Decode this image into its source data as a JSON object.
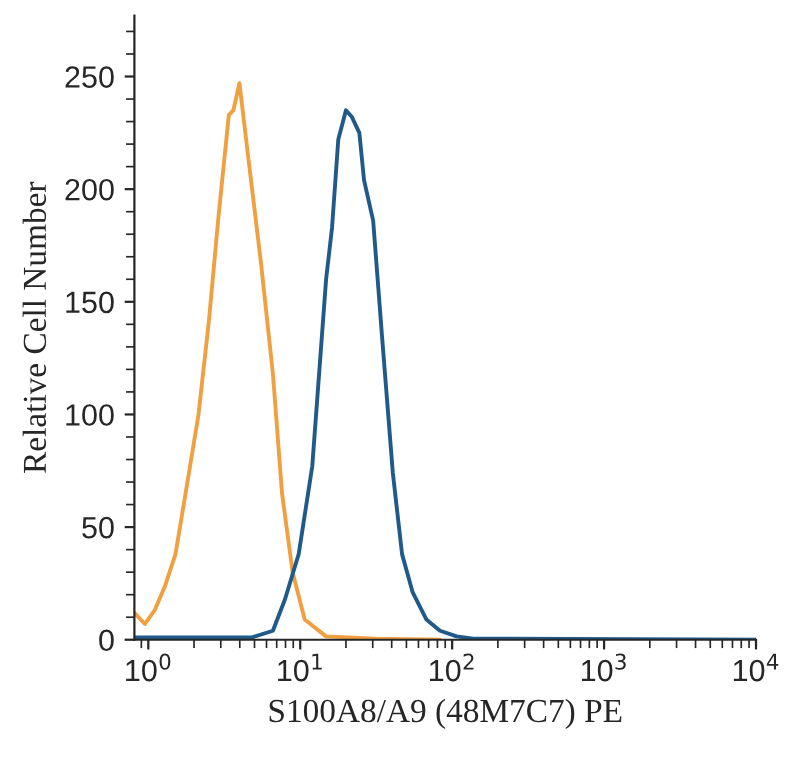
{
  "chart_data": {
    "type": "line",
    "xlabel": "S100A8/A9 (48M7C7) PE",
    "ylabel": "Relative Cell Number",
    "log": "x",
    "xlim": [
      0.81,
      10000
    ],
    "ylim": [
      0,
      277
    ],
    "xticks": [
      {
        "value": 1,
        "label": "10$^{0}$"
      },
      {
        "value": 10,
        "label": "10$^{1}$"
      },
      {
        "value": 100,
        "label": "10$^{2}$"
      },
      {
        "value": 1000,
        "label": "10$^{3}$"
      },
      {
        "value": 10000,
        "label": "10$^{4}$"
      }
    ],
    "yticks": [
      0,
      50,
      100,
      150,
      200,
      250
    ],
    "grid": false,
    "legend": false,
    "marker": "none",
    "line_style": "solid",
    "series": [
      {
        "color": "#f0a040",
        "x": [
          0.81,
          0.95,
          1.1,
          1.29,
          1.51,
          1.82,
          2.14,
          2.51,
          2.88,
          3.39,
          3.63,
          3.98,
          4.57,
          5.5,
          6.61,
          7.59,
          8.91,
          10.7,
          14.8,
          31.6,
          83.2
        ],
        "values": [
          12,
          7,
          13,
          24,
          38,
          71,
          100,
          142,
          186,
          233,
          235,
          247,
          213,
          168,
          118,
          65,
          30,
          9,
          1.5,
          0.5,
          0
        ]
      },
      {
        "color": "#1f5a8a",
        "x": [
          0.81,
          4.79,
          6.61,
          7.94,
          9.77,
          12.0,
          14.8,
          16.2,
          17.8,
          20.0,
          21.9,
          24.5,
          26.3,
          30.2,
          34.7,
          40.7,
          46.8,
          55.0,
          67.6,
          83.2,
          107,
          138,
          10000
        ],
        "values": [
          1,
          1,
          4,
          18,
          38,
          77,
          160,
          183,
          222,
          235,
          232,
          225,
          204,
          186,
          133,
          74,
          38,
          21,
          9,
          4,
          1.5,
          0.5,
          0
        ]
      }
    ]
  }
}
